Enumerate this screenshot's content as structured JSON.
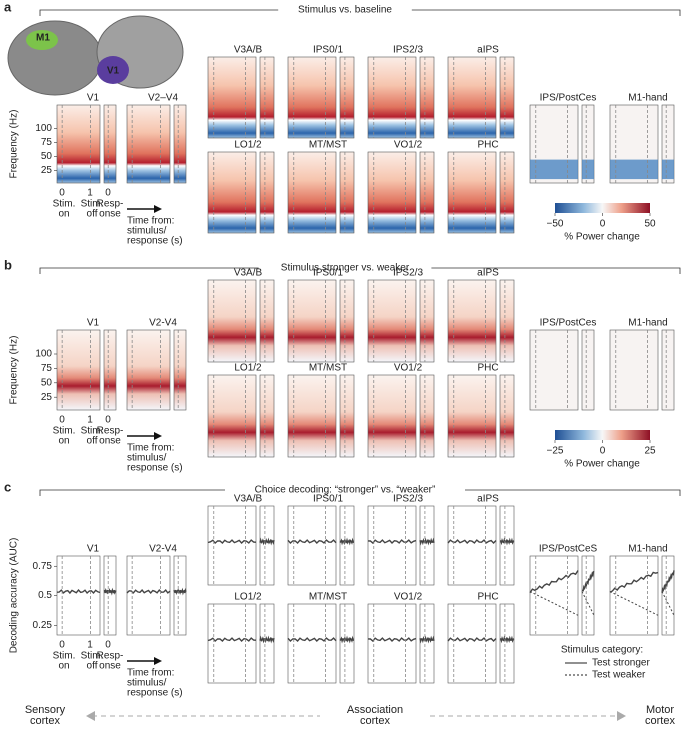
{
  "panels": [
    {
      "letter": "a",
      "title": "Stimulus vs. baseline",
      "brain_labels": [
        "M1",
        "V1"
      ],
      "sensory_regions": [
        "V1",
        "V2–V4"
      ],
      "association_regions": [
        "V3A/B",
        "IPS0/1",
        "IPS2/3",
        "aIPS",
        "LO1/2",
        "MT/MST",
        "VO1/2",
        "PHC"
      ],
      "motor_regions": [
        "IPS/PostCes",
        "M1-hand"
      ],
      "y_axis_label": "Frequency (Hz)",
      "y_ticks": [
        "100",
        "75",
        "50",
        "25"
      ],
      "x_ticks": [
        "0",
        "1",
        "0"
      ],
      "x_tick_captions": [
        [
          "Stim.",
          "on"
        ],
        [
          "Stim.",
          "off"
        ],
        [
          "Resp-",
          "onse"
        ]
      ],
      "time_label": [
        "Time from:",
        "stimulus/",
        "response (s)"
      ],
      "colorbar": {
        "ticks": [
          "−50",
          "0",
          "50"
        ],
        "label": "% Power change"
      }
    },
    {
      "letter": "b",
      "title": "Stimulus stronger vs. weaker",
      "sensory_regions": [
        "V1",
        "V2-V4"
      ],
      "association_regions": [
        "V3A/B",
        "IPS0/1",
        "IPS2/3",
        "aIPS",
        "LO1/2",
        "MT/MST",
        "VO1/2",
        "PHC"
      ],
      "motor_regions": [
        "IPS/PostCes",
        "M1-hand"
      ],
      "y_axis_label": "Frequency (Hz)",
      "y_ticks": [
        "100",
        "75",
        "50",
        "25"
      ],
      "x_ticks": [
        "0",
        "1",
        "0"
      ],
      "x_tick_captions": [
        [
          "Stim.",
          "on"
        ],
        [
          "Stim.",
          "off"
        ],
        [
          "Resp-",
          "onse"
        ]
      ],
      "time_label": [
        "Time from:",
        "stimulus/",
        "response (s)"
      ],
      "colorbar": {
        "ticks": [
          "−25",
          "0",
          "25"
        ],
        "label": "% Power change"
      }
    },
    {
      "letter": "c",
      "title": "Choice decoding: “stronger” vs. “weaker”",
      "sensory_regions": [
        "V1",
        "V2-V4"
      ],
      "association_regions": [
        "V3A/B",
        "IPS0/1",
        "IPS2/3",
        "aIPS",
        "LO1/2",
        "MT/MST",
        "VO1/2",
        "PHC"
      ],
      "motor_regions": [
        "IPS/PostCeS",
        "M1-hand"
      ],
      "y_axis_label": "Decoding accuracy (AUC)",
      "y_ticks": [
        "0.75",
        "0.5",
        "0.25"
      ],
      "x_ticks": [
        "0",
        "1",
        "0"
      ],
      "x_tick_captions": [
        [
          "Stim.",
          "on"
        ],
        [
          "Stim.",
          "off"
        ],
        [
          "Resp-",
          "onse"
        ]
      ],
      "time_label": [
        "Time from:",
        "stimulus/",
        "response (s)"
      ],
      "legend": {
        "title": "Stimulus category:",
        "entries": [
          "Test stronger",
          "Test weaker"
        ]
      }
    }
  ],
  "gradient_labels": [
    [
      "Sensory",
      "cortex"
    ],
    [
      "Association",
      "cortex"
    ],
    [
      "Motor",
      "cortex"
    ]
  ]
}
